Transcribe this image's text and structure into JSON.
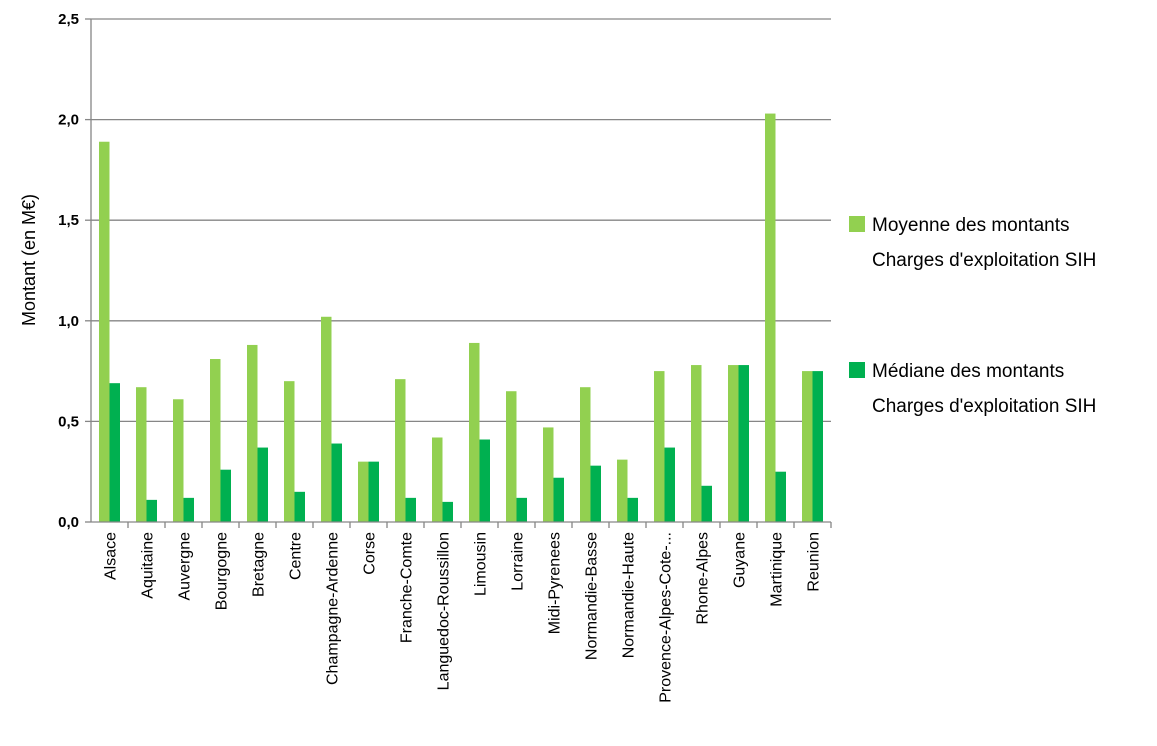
{
  "chart_data": {
    "type": "bar",
    "ylabel": "Montant (en M€)",
    "ylim": [
      0,
      2.5
    ],
    "yticks": [
      "0,0",
      "0,5",
      "1,0",
      "1,5",
      "2,0",
      "2,5"
    ],
    "grid": true,
    "legend_position": "right",
    "categories": [
      "Alsace",
      "Aquitaine",
      "Auvergne",
      "Bourgogne",
      "Bretagne",
      "Centre",
      "Champagne-Ardenne",
      "Corse",
      "Franche-Comte",
      "Languedoc-Roussillon",
      "Limousin",
      "Lorraine",
      "Midi-Pyrenees",
      "Normandie-Basse",
      "Normandie-Haute",
      "Provence-Alpes-Cote-...",
      "Rhone-Alpes",
      "Guyane",
      "Martinique",
      "Reunion"
    ],
    "series": [
      {
        "name": "Moyenne des montants Charges d'exploitation SIH",
        "legend_lines": [
          "Moyenne des montants",
          "Charges d'exploitation SIH"
        ],
        "color": "#92D050",
        "values": [
          1.89,
          0.67,
          0.61,
          0.81,
          0.88,
          0.7,
          1.02,
          0.3,
          0.71,
          0.42,
          0.89,
          0.65,
          0.47,
          0.67,
          0.31,
          0.75,
          0.78,
          0.78,
          2.03,
          0.75
        ]
      },
      {
        "name": "Médiane des montants Charges d'exploitation SIH",
        "legend_lines": [
          "Médiane des montants",
          "Charges d'exploitation SIH"
        ],
        "color": "#00B050",
        "values": [
          0.69,
          0.11,
          0.12,
          0.26,
          0.37,
          0.15,
          0.39,
          0.3,
          0.12,
          0.1,
          0.41,
          0.12,
          0.22,
          0.28,
          0.12,
          0.37,
          0.18,
          0.78,
          0.25,
          0.75
        ]
      }
    ]
  }
}
